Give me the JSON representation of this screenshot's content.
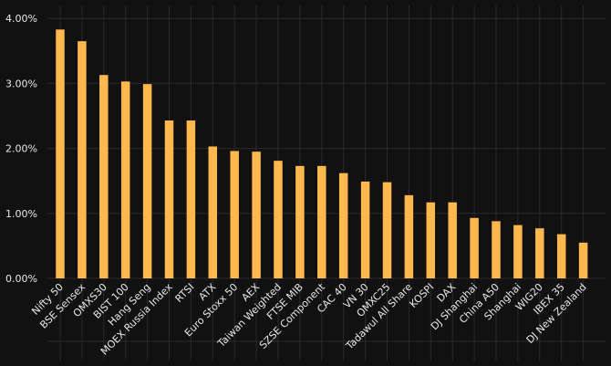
{
  "chart_data": {
    "type": "bar",
    "title": "",
    "xlabel": "",
    "ylabel": "",
    "y_tick_labels": [
      "0.00%",
      "1.00%",
      "2.00%",
      "3.00%",
      "4.00%"
    ],
    "ylim": [
      0,
      4.2
    ],
    "grid": true,
    "bar_color": "#ffb84d",
    "background": "#111111",
    "grid_color": "#2a2a2a",
    "text_color": "#e8e8e8",
    "categories": [
      "Nifty 50",
      "BSE Sensex",
      "OMXS30",
      "BIST 100",
      "Hang Seng",
      "MOEX Russia Index",
      "RTSI",
      "ATX",
      "Euro Stoxx 50",
      "AEX",
      "Taiwan Weighted",
      "FTSE MIB",
      "SZSE Component",
      "CAC 40",
      "VN 30",
      "OMXC25",
      "Tadawul All Share",
      "KOSPI",
      "DAX",
      "DJ Shanghai",
      "China A50",
      "Shanghai",
      "WIG20",
      "IBEX 35",
      "DJ New Zealand"
    ],
    "values": [
      3.83,
      3.65,
      3.13,
      3.03,
      2.99,
      2.43,
      2.43,
      2.03,
      1.96,
      1.95,
      1.81,
      1.73,
      1.73,
      1.62,
      1.49,
      1.48,
      1.28,
      1.17,
      1.17,
      0.93,
      0.88,
      0.82,
      0.77,
      0.68,
      0.55
    ]
  }
}
